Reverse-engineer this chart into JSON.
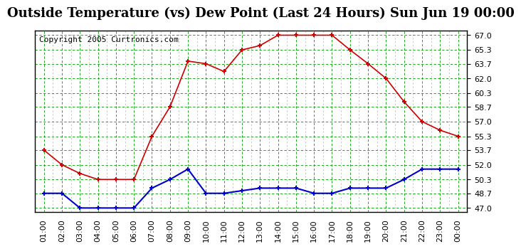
{
  "title": "Outside Temperature (vs) Dew Point (Last 24 Hours) Sun Jun 19 00:00",
  "copyright": "Copyright 2005 Curtronics.com",
  "x_labels": [
    "01:00",
    "02:00",
    "03:00",
    "04:00",
    "05:00",
    "06:00",
    "07:00",
    "08:00",
    "09:00",
    "10:00",
    "11:00",
    "12:00",
    "13:00",
    "14:00",
    "15:00",
    "16:00",
    "17:00",
    "18:00",
    "19:00",
    "20:00",
    "21:00",
    "22:00",
    "23:00",
    "00:00"
  ],
  "temp_values": [
    53.7,
    52.0,
    51.0,
    50.3,
    50.3,
    50.3,
    55.3,
    58.7,
    64.0,
    63.7,
    62.8,
    65.3,
    65.8,
    67.0,
    67.0,
    67.0,
    67.0,
    65.3,
    63.7,
    62.0,
    59.3,
    57.0,
    56.0,
    55.3
  ],
  "dew_values": [
    48.7,
    48.7,
    47.0,
    47.0,
    47.0,
    47.0,
    49.3,
    50.3,
    51.5,
    48.7,
    48.7,
    49.0,
    49.3,
    49.3,
    49.3,
    48.7,
    48.7,
    49.3,
    49.3,
    49.3,
    50.3,
    51.5,
    51.5,
    51.5
  ],
  "temp_color": "#cc0000",
  "dew_color": "#0000cc",
  "bg_color": "#ffffff",
  "grid_color_major": "#009900",
  "grid_color_minor": "#aaddaa",
  "y_ticks": [
    47.0,
    48.7,
    50.3,
    52.0,
    53.7,
    55.3,
    57.0,
    58.7,
    60.3,
    62.0,
    63.7,
    65.3,
    67.0
  ],
  "ylim": [
    46.5,
    67.5
  ],
  "title_fontsize": 13,
  "copyright_fontsize": 8,
  "tick_fontsize": 8
}
